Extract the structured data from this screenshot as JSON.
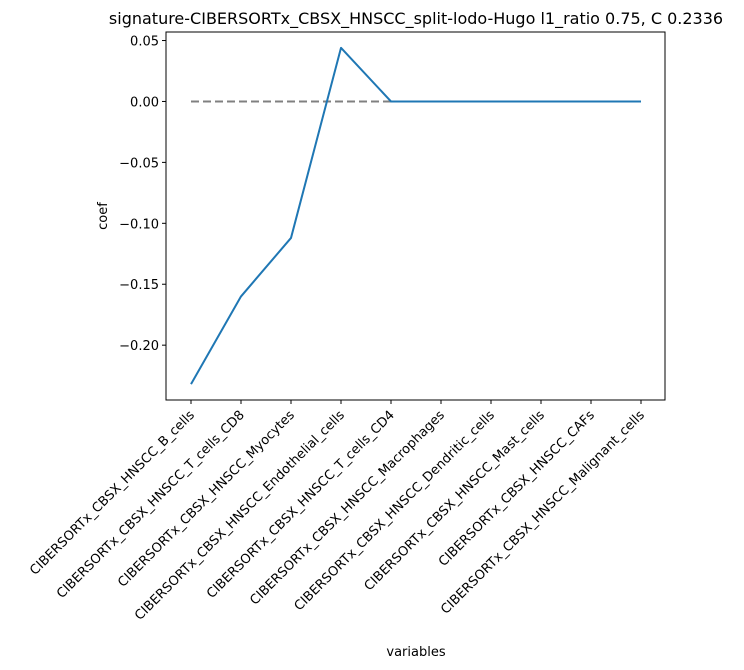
{
  "chart_data": {
    "type": "line",
    "title": "signature-CIBERSORTx_CBSX_HNSCC_split-lodo-Hugo l1_ratio 0.75, C 0.2336",
    "xlabel": "variables",
    "ylabel": "coef",
    "ylim": [
      -0.245,
      0.057
    ],
    "yticks": [
      0.05,
      0.0,
      -0.05,
      -0.1,
      -0.15,
      -0.2
    ],
    "ytick_labels": [
      "0.05",
      "0.00",
      "−0.05",
      "−0.10",
      "−0.15",
      "−0.20"
    ],
    "categories": [
      "CIBERSORTx_CBSX_HNSCC_B_cells",
      "CIBERSORTx_CBSX_HNSCC_T_cells_CD8",
      "CIBERSORTx_CBSX_HNSCC_Myocytes",
      "CIBERSORTx_CBSX_HNSCC_Endothelial_cells",
      "CIBERSORTx_CBSX_HNSCC_T_cells_CD4",
      "CIBERSORTx_CBSX_HNSCC_Macrophages",
      "CIBERSORTx_CBSX_HNSCC_Dendritic_cells",
      "CIBERSORTx_CBSX_HNSCC_Mast_cells",
      "CIBERSORTx_CBSX_HNSCC_CAFs",
      "CIBERSORTx_CBSX_HNSCC_Malignant_cells"
    ],
    "series": [
      {
        "values": [
          -0.232,
          -0.16,
          -0.112,
          0.044,
          0.0,
          0.0,
          0.0,
          0.0,
          0.0,
          0.0
        ],
        "color": "#1f77b4"
      }
    ],
    "reference_line": {
      "y": 0.0,
      "style": "dashed",
      "color": "#808080"
    },
    "grid": false
  }
}
